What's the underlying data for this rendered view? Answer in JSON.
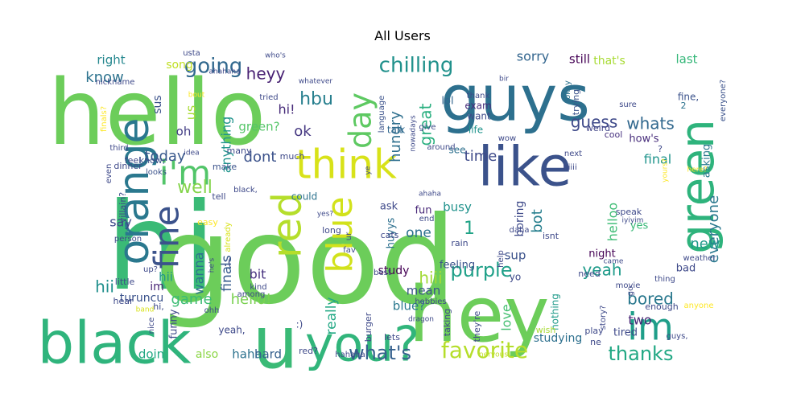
{
  "title": "All Users",
  "palette": [
    "#440154",
    "#3b528b",
    "#21908d",
    "#5dc863",
    "#fde725"
  ],
  "words": [
    {
      "text": "hello",
      "color": "#6ccd5a"
    },
    {
      "text": "guys",
      "color": "#2d708e"
    },
    {
      "text": "hi",
      "color": "#3aba76"
    },
    {
      "text": "good",
      "color": "#6ccd5a"
    },
    {
      "text": "hey",
      "color": "#6ccd5a"
    },
    {
      "text": "black",
      "color": "#2fb47c"
    },
    {
      "text": "u",
      "color": "#3aba76"
    },
    {
      "text": "you?",
      "color": "#31b57b"
    },
    {
      "text": "orange",
      "color": "#2a788e"
    },
    {
      "text": "like",
      "color": "#3b528b"
    },
    {
      "text": "think",
      "color": "#d8e219"
    },
    {
      "text": "green",
      "color": "#2eb37c"
    },
    {
      "text": "im",
      "color": "#1f9e89"
    },
    {
      "text": "i'm",
      "color": "#52c569"
    },
    {
      "text": "fine",
      "color": "#3b528b"
    },
    {
      "text": "red",
      "color": "#b5de2b"
    },
    {
      "text": "blue",
      "color": "#d2e21b"
    },
    {
      "text": "day",
      "color": "#5ec962"
    },
    {
      "text": "favorite",
      "color": "#b5de2b"
    },
    {
      "text": "what's",
      "color": "#35608d"
    },
    {
      "text": "thanks",
      "color": "#22a884"
    },
    {
      "text": "going",
      "color": "#31688e"
    },
    {
      "text": "chilling",
      "color": "#21918c"
    },
    {
      "text": "know",
      "color": "#2c728e"
    },
    {
      "text": "heyy",
      "color": "#482173"
    },
    {
      "text": "hbu",
      "color": "#277f8e"
    },
    {
      "text": "well",
      "color": "#84d44b"
    },
    {
      "text": "purple",
      "color": "#1fa088"
    },
    {
      "text": "yeah",
      "color": "#1e9b8a"
    },
    {
      "text": "bored",
      "color": "#2a788e"
    },
    {
      "text": "time",
      "color": "#3e4a89"
    },
    {
      "text": "today",
      "color": "#38588c"
    },
    {
      "text": "dont",
      "color": "#3b528b"
    },
    {
      "text": "hello!",
      "color": "#7ad151"
    },
    {
      "text": "great",
      "color": "#29af7f"
    },
    {
      "text": "hungry",
      "color": "#2e6f8e"
    },
    {
      "text": "ok",
      "color": "#453781"
    },
    {
      "text": "hi!",
      "color": "#472c7a"
    },
    {
      "text": "1",
      "color": "#20a386"
    },
    {
      "text": "guess",
      "color": "#3e4989"
    },
    {
      "text": "whats",
      "color": "#31688e"
    },
    {
      "text": "everyone",
      "color": "#2a788e"
    },
    {
      "text": "new",
      "color": "#1f9a8a"
    },
    {
      "text": "hii",
      "color": "#21908d"
    },
    {
      "text": "hiii",
      "color": "#a2da37"
    },
    {
      "text": "bot",
      "color": "#277f8e"
    },
    {
      "text": "game",
      "color": "#3dbc74"
    },
    {
      "text": "finals",
      "color": "#375b8d"
    },
    {
      "text": "bit",
      "color": "#46307e"
    },
    {
      "text": "say",
      "color": "#3e4989"
    },
    {
      "text": "right",
      "color": "#24878e"
    },
    {
      "text": "sorry",
      "color": "#32658e"
    },
    {
      "text": "still",
      "color": "#440154"
    },
    {
      "text": "that's",
      "color": "#a8db34"
    },
    {
      "text": "last",
      "color": "#35b779"
    },
    {
      "text": "song",
      "color": "#c0df25"
    },
    {
      "text": "sus",
      "color": "#3b528b"
    },
    {
      "text": "us",
      "color": "#a8db34"
    },
    {
      "text": "oh",
      "color": "#433e85"
    },
    {
      "text": "anything",
      "color": "#1f948c"
    },
    {
      "text": "green?",
      "color": "#54c568"
    },
    {
      "text": "hii",
      "color": "#1f968b"
    },
    {
      "text": "im",
      "color": "#482475"
    },
    {
      "text": "wanna",
      "color": "#2c728e"
    },
    {
      "text": "one",
      "color": "#2c718e"
    },
    {
      "text": "busy",
      "color": "#20928c"
    },
    {
      "text": "fun",
      "color": "#482878"
    },
    {
      "text": "boring",
      "color": "#3e4a89"
    },
    {
      "text": "sup",
      "color": "#3b528b"
    },
    {
      "text": "helloo",
      "color": "#3dbc74"
    },
    {
      "text": "final",
      "color": "#1f948c"
    },
    {
      "text": "how's",
      "color": "#472d7b"
    },
    {
      "text": "asking",
      "color": "#2a788e"
    },
    {
      "text": "yes",
      "color": "#38b977"
    },
    {
      "text": "two",
      "color": "#482475"
    },
    {
      "text": "tired",
      "color": "#3e4989"
    },
    {
      "text": "night",
      "color": "#440154"
    },
    {
      "text": "bad",
      "color": "#3e4989"
    },
    {
      "text": "mean",
      "color": "#3b528b"
    },
    {
      "text": "blue?",
      "color": "#2a788e"
    },
    {
      "text": "really",
      "color": "#22a884"
    },
    {
      "text": "love",
      "color": "#44bf70"
    },
    {
      "text": "studying",
      "color": "#2d708e"
    },
    {
      "text": "haha",
      "color": "#2c728e"
    },
    {
      "text": "also",
      "color": "#8bd646"
    },
    {
      "text": "doin",
      "color": "#22a884"
    },
    {
      "text": "hard",
      "color": "#35608d"
    },
    {
      "text": "turuncu",
      "color": "#3b528b"
    },
    {
      "text": "funny",
      "color": "#3e4989"
    },
    {
      "text": "yeah,",
      "color": "#3e4989"
    },
    {
      "text": "nothing",
      "color": "#1f9a8a"
    },
    {
      "text": "huyys",
      "color": "#2d708e"
    },
    {
      "text": "feeling",
      "color": "#3b528b"
    },
    {
      "text": "study",
      "color": "#440154"
    },
    {
      "text": "ask",
      "color": "#3e4989"
    },
    {
      "text": "lol",
      "color": "#32658e"
    },
    {
      "text": "exam",
      "color": "#472d7b"
    },
    {
      "text": "want",
      "color": "#3e4989"
    },
    {
      "text": "life",
      "color": "#1f948c"
    },
    {
      "text": "talk",
      "color": "#31688e"
    },
    {
      "text": "language",
      "color": "#3b528b"
    },
    {
      "text": "cool",
      "color": "#46307e"
    },
    {
      "text": "weird",
      "color": "#414487"
    },
    {
      "text": "make",
      "color": "#3b528b"
    },
    {
      "text": "dinner",
      "color": "#3e4989"
    },
    {
      "text": "looks",
      "color": "#3b528b"
    },
    {
      "text": "see",
      "color": "#2d708e"
    },
    {
      "text": "much",
      "color": "#3e4989"
    },
    {
      "text": "many",
      "color": "#3e4989"
    },
    {
      "text": "could",
      "color": "#2c728e"
    },
    {
      "text": "feel",
      "color": "#3e4989"
    },
    {
      "text": "know,",
      "color": "#3b528b"
    },
    {
      "text": "tell",
      "color": "#3e4989"
    },
    {
      "text": "everyone?",
      "color": "#3b528b"
    },
    {
      "text": "fine,",
      "color": "#3b528b"
    },
    {
      "text": "2",
      "color": "#2c728e"
    },
    {
      "text": "trying",
      "color": "#3b528b"
    },
    {
      "text": "okay",
      "color": "#2c728e"
    },
    {
      "text": "sure",
      "color": "#3e4989"
    },
    {
      "text": "next",
      "color": "#3e4989"
    },
    {
      "text": "hiiii",
      "color": "#3e4989"
    },
    {
      "text": "speak",
      "color": "#3e4989"
    },
    {
      "text": "iyiyim",
      "color": "#3e4989"
    },
    {
      "text": "weather",
      "color": "#3e4989"
    },
    {
      "text": "movie",
      "color": "#3e4989"
    },
    {
      "text": "thing",
      "color": "#3e4989"
    },
    {
      "text": "enough",
      "color": "#3e4989"
    },
    {
      "text": "anyone",
      "color": "#fde725"
    },
    {
      "text": "story?",
      "color": "#3e4989"
    },
    {
      "text": "play",
      "color": "#3e4989"
    },
    {
      "text": "wish",
      "color": "#a8db34"
    },
    {
      "text": "ne",
      "color": "#3e4989"
    },
    {
      "text": "taking",
      "color": "#3e4989"
    },
    {
      "text": "lets",
      "color": "#3e4989"
    },
    {
      "text": "hahaha",
      "color": "#3e4989"
    },
    {
      "text": "nervous",
      "color": "#c0df25"
    },
    {
      "text": "they're",
      "color": "#3e4989"
    },
    {
      "text": "burger",
      "color": "#3e4989"
    },
    {
      "text": "dragon",
      "color": "#3e4989"
    },
    {
      "text": "red?",
      "color": "#3e4989"
    },
    {
      "text": "nice",
      "color": "#3e4989"
    },
    {
      "text": "hi,",
      "color": "#3e4989"
    },
    {
      "text": "ohh",
      "color": "#3e4989"
    },
    {
      "text": "band",
      "color": "#d8e219"
    },
    {
      "text": "hear",
      "color": "#3e4989"
    },
    {
      "text": "little",
      "color": "#3e4989"
    },
    {
      "text": "among",
      "color": "#3e4989"
    },
    {
      "text": "kind",
      "color": "#3e4989"
    },
    {
      "text": "person",
      "color": "#3e4989"
    },
    {
      "text": "villain?",
      "color": "#3e4989"
    },
    {
      "text": "easy",
      "color": "#fde725"
    },
    {
      "text": "already",
      "color": "#d8e219"
    },
    {
      "text": "black,",
      "color": "#3e4989"
    },
    {
      "text": "even",
      "color": "#3e4989"
    },
    {
      "text": "third",
      "color": "#3e4989"
    },
    {
      "text": "idea",
      "color": "#3e4989"
    },
    {
      "text": "finals?",
      "color": "#fde725"
    },
    {
      "text": "nickname",
      "color": "#3e4989"
    },
    {
      "text": "usta",
      "color": "#3e4989"
    },
    {
      "text": "who's",
      "color": "#3e4989"
    },
    {
      "text": "ahahaha",
      "color": "#3e4989"
    },
    {
      "text": "whatever",
      "color": "#3e4989"
    },
    {
      "text": "tried",
      "color": "#3e4989"
    },
    {
      "text": "bout",
      "color": "#fde725"
    },
    {
      "text": "nowadays",
      "color": "#3e4989"
    },
    {
      "text": "give",
      "color": "#3e4989"
    },
    {
      "text": "around",
      "color": "#3e4989"
    },
    {
      "text": "thank",
      "color": "#3e4989"
    },
    {
      "text": "bir",
      "color": "#3e4989"
    },
    {
      "text": "wow",
      "color": "#3e4989"
    },
    {
      "text": "ye",
      "color": "#3e4989"
    },
    {
      "text": "ahaha",
      "color": "#3e4989"
    },
    {
      "text": "yes?",
      "color": "#3e4989"
    },
    {
      "text": "end",
      "color": "#3e4989"
    },
    {
      "text": "ur",
      "color": "#3e4989"
    },
    {
      "text": "fav",
      "color": "#3e4989"
    },
    {
      "text": "long",
      "color": "#3e4989"
    },
    {
      "text": "cats",
      "color": "#3e4989"
    },
    {
      "text": "rain",
      "color": "#3e4989"
    },
    {
      "text": "daha",
      "color": "#3e4989"
    },
    {
      "text": "isnt",
      "color": "#3e4989"
    },
    {
      "text": "help",
      "color": "#3e4989"
    },
    {
      "text": "best",
      "color": "#3e4989"
    },
    {
      "text": "hobbies",
      "color": "#3e4989"
    },
    {
      "text": "need",
      "color": "#3e4989"
    },
    {
      "text": "came",
      "color": "#3e4989"
    },
    {
      "text": "go",
      "color": "#3e4989"
    },
    {
      "text": "guys,",
      "color": "#3e4989"
    },
    {
      "text": "here?",
      "color": "#fde725"
    },
    {
      "text": "yours?",
      "color": "#fde725"
    },
    {
      "text": ":)",
      "color": "#3e4989"
    },
    {
      "text": ":(",
      "color": "#3e4989"
    },
    {
      "text": "he's",
      "color": "#3e4989"
    },
    {
      "text": "up?",
      "color": "#3e4989"
    },
    {
      "text": "yo",
      "color": "#3e4989"
    },
    {
      "text": "?",
      "color": "#3e4989"
    }
  ]
}
